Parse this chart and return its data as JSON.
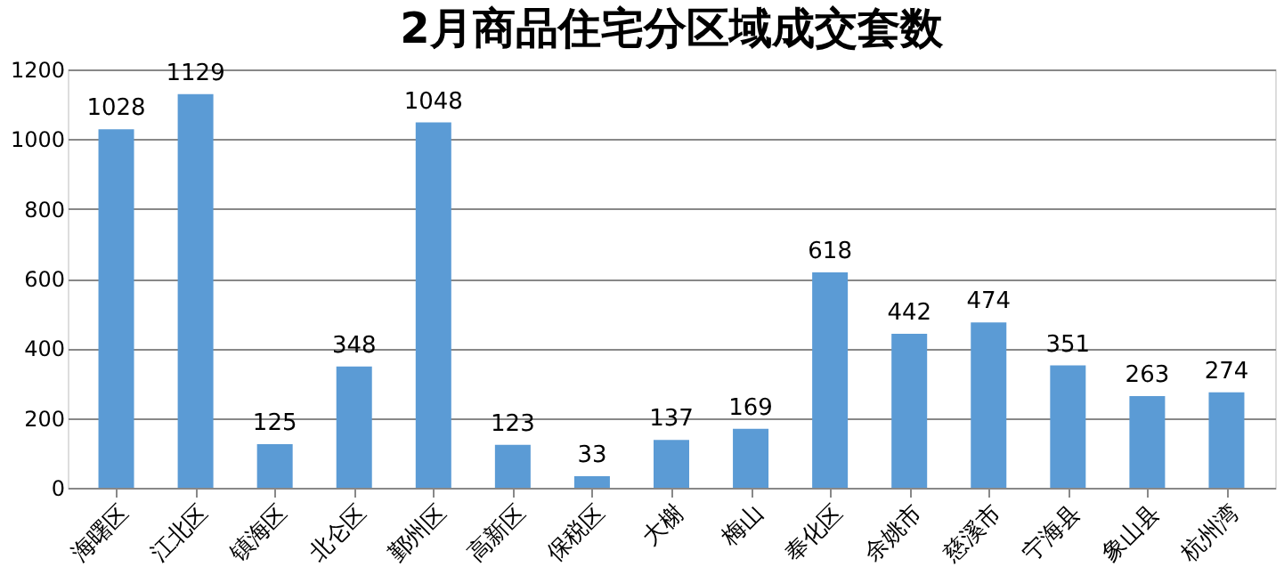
{
  "chart_data": {
    "type": "bar",
    "title": "2月商品住宅分区域成交套数",
    "categories": [
      "海曙区",
      "江北区",
      "镇海区",
      "北仑区",
      "鄞州区",
      "高新区",
      "保税区",
      "大榭",
      "梅山",
      "奉化区",
      "余姚市",
      "慈溪市",
      "宁海县",
      "象山县",
      "杭州湾"
    ],
    "values": [
      1028,
      1129,
      125,
      348,
      1048,
      123,
      33,
      137,
      169,
      618,
      442,
      474,
      351,
      263,
      274
    ],
    "color": "#5b9bd5",
    "ylim": [
      0,
      1200
    ],
    "yticks": [
      0,
      200,
      400,
      600,
      800,
      1000,
      1200
    ],
    "grid": "y",
    "data_labels": true
  }
}
